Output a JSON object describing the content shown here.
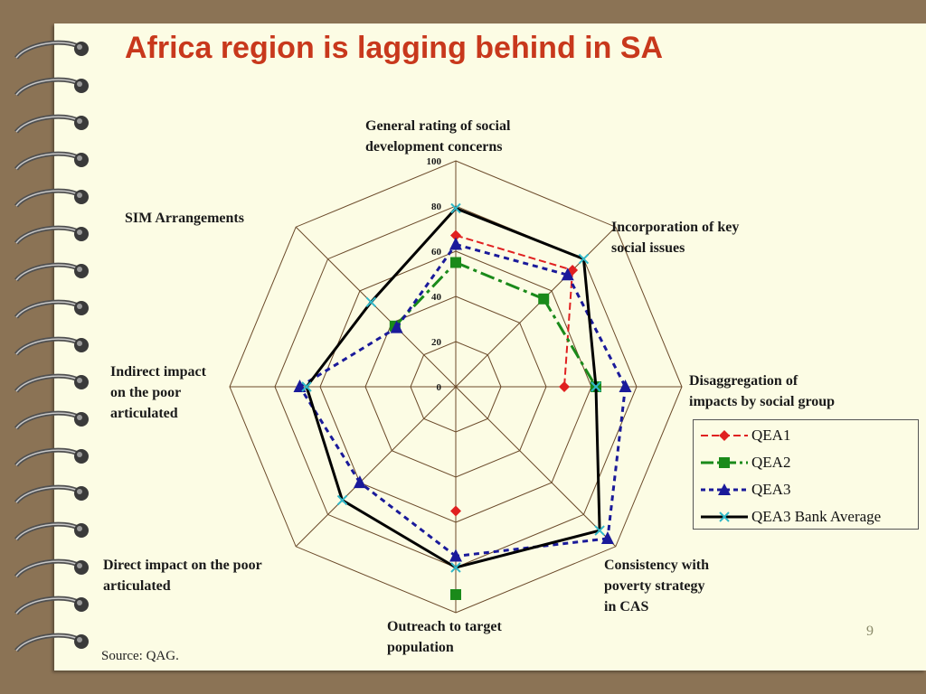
{
  "slide": {
    "title": "Africa region is lagging behind in SA",
    "source": "Source: QAG.",
    "page_number": "9"
  },
  "colors": {
    "title": "#c8381c",
    "background": "#8b7355",
    "paper": "#fcfce4",
    "grid": "#6b4a2a",
    "qea1": "#e02020",
    "qea2": "#1a8a1a",
    "qea3": "#1a1a9a",
    "bank_average": "#000000",
    "bank_average_marker": "#30b8c8"
  },
  "chart_data": {
    "type": "radar",
    "title": "",
    "axes": [
      "General rating of social development concerns",
      "Incorporation of key social issues",
      "Disaggregation of impacts by social group",
      "Consistency with poverty strategy in CAS",
      "Outreach to target population",
      "Direct impact on the poor articulated",
      "Indirect impact on the poor articulated",
      "SIM Arrangements"
    ],
    "axis_label_lines": [
      [
        "General rating of social",
        "development concerns"
      ],
      [
        "Incorporation of key",
        "social issues"
      ],
      [
        "Disaggregation of",
        "impacts by social group"
      ],
      [
        "Consistency with",
        "poverty strategy",
        "in CAS"
      ],
      [
        "Outreach to target",
        "population"
      ],
      [
        "Direct impact on the poor",
        "articulated"
      ],
      [
        "Indirect impact",
        "on the poor",
        "articulated"
      ],
      [
        "SIM Arrangements"
      ]
    ],
    "r_ticks": [
      "0",
      "20",
      "40",
      "60",
      "80",
      "100"
    ],
    "r_range": [
      0,
      100
    ],
    "legend_position": "right",
    "series": [
      {
        "name": "QEA1",
        "values": [
          67,
          73,
          48,
          null,
          55,
          null,
          null,
          null
        ]
      },
      {
        "name": "QEA2",
        "values": [
          55,
          55,
          62,
          null,
          92,
          null,
          null,
          38
        ]
      },
      {
        "name": "QEA3",
        "values": [
          63,
          70,
          75,
          95,
          75,
          60,
          69,
          37
        ]
      },
      {
        "name": "QEA3 Bank Average",
        "values": [
          79,
          80,
          62,
          90,
          80,
          71,
          66,
          53
        ]
      }
    ]
  }
}
